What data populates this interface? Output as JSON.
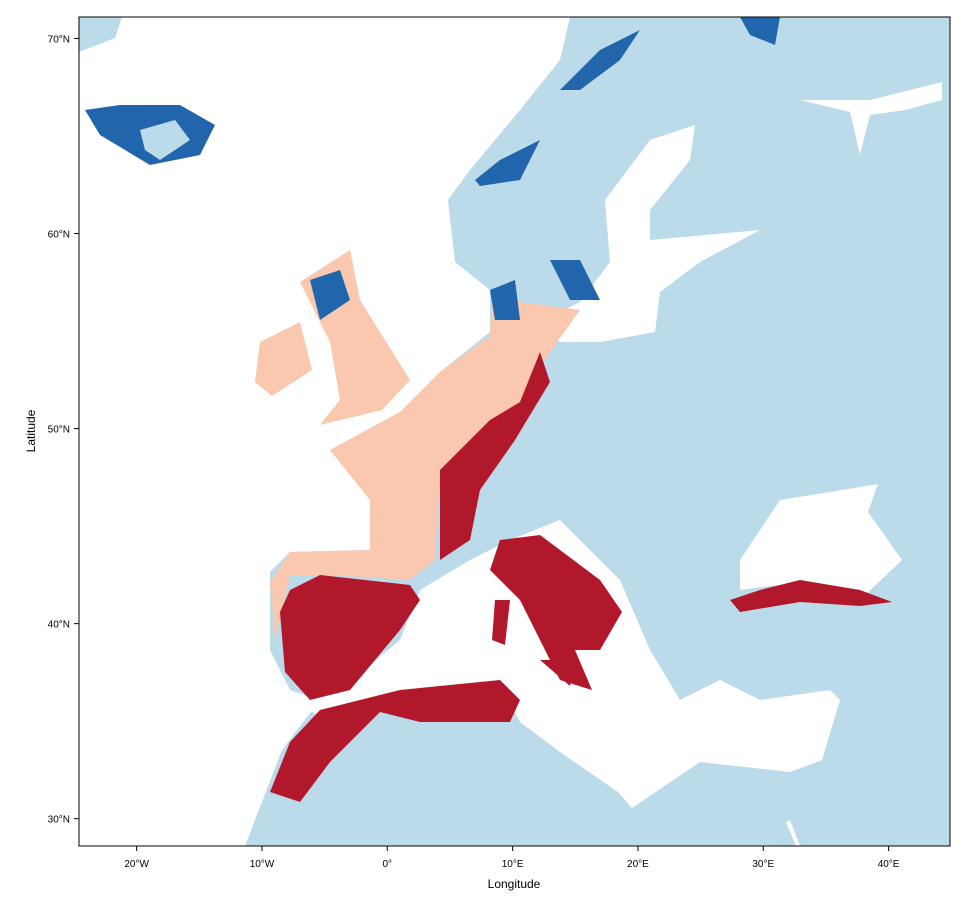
{
  "map": {
    "x_axis": {
      "title": "Longitude",
      "ticks": [
        {
          "value": -20,
          "label": "20°W"
        },
        {
          "value": -10,
          "label": "10°W"
        },
        {
          "value": 0,
          "label": "0°"
        },
        {
          "value": 10,
          "label": "10°E"
        },
        {
          "value": 20,
          "label": "20°E"
        },
        {
          "value": 30,
          "label": "30°E"
        },
        {
          "value": 40,
          "label": "40°E"
        }
      ],
      "range": [
        -24.6,
        44.9
      ]
    },
    "y_axis": {
      "title": "Latitude",
      "ticks": [
        {
          "value": 30,
          "label": "30°N"
        },
        {
          "value": 40,
          "label": "40°N"
        },
        {
          "value": 50,
          "label": "50°N"
        },
        {
          "value": 60,
          "label": "60°N"
        },
        {
          "value": 70,
          "label": "70°N"
        }
      ],
      "range": [
        28.6,
        71.1
      ]
    },
    "colors": {
      "water": "#ffffff",
      "land_background": "#bcdbea",
      "dark_blue": "#2166ac",
      "light_salmon": "#f9c8ae",
      "dark_red": "#b2182b"
    }
  }
}
